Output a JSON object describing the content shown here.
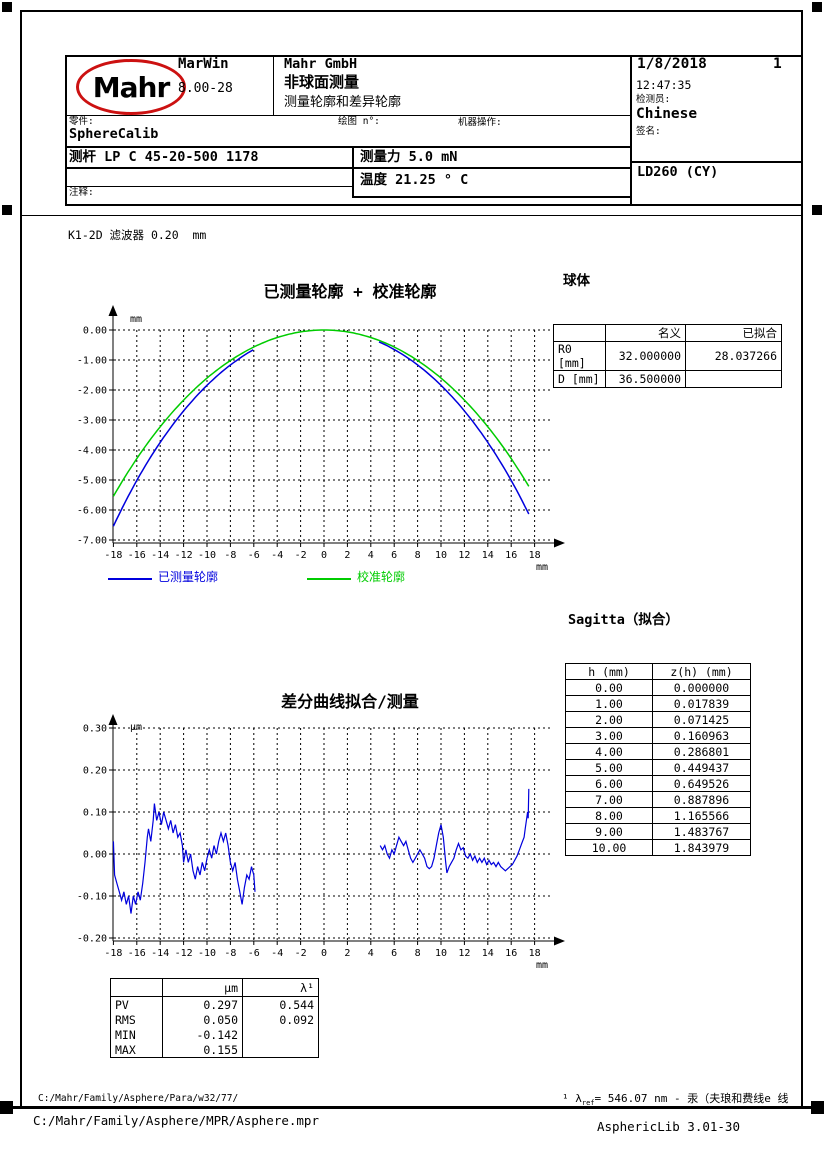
{
  "header": {
    "logo": "Mahr",
    "app": {
      "name": "MarWin",
      "version": "8.00-28"
    },
    "company": "Mahr GmbH",
    "title": "非球面测量",
    "subtitle": "测量轮廓和差异轮廓",
    "date": "1/8/2018",
    "page": "1",
    "time": "12:47:35",
    "labels": {
      "inspector": "检测员:",
      "signature": "签名:",
      "part": "零件:",
      "drawing": "绘图 n°:",
      "machine": "机器操作:",
      "comment": "注释:"
    },
    "inspector": "Chinese",
    "part": "SphereCalib",
    "probe": "测杆 LP C 45-20-500 1178",
    "force": "测量力 5.0 mN",
    "temperature": "温度 21.25 ° C",
    "instrument": "LD260 (CY)"
  },
  "filter_line": "K1-2D 滤波器 0.20  mm",
  "sphere_section": {
    "title": "球体",
    "col_nominal": "名义",
    "col_fitted": "已拟合",
    "rows": [
      {
        "label": "R0 [mm]",
        "nominal": "32.000000",
        "fitted": "28.037266"
      },
      {
        "label": "D [mm]",
        "nominal": "36.500000",
        "fitted": ""
      }
    ]
  },
  "sagitta_section": {
    "title": "Sagitta（拟合）",
    "headers": [
      "h (mm)",
      "z(h) (mm)"
    ],
    "rows": [
      [
        "0.00",
        "0.000000"
      ],
      [
        "1.00",
        "0.017839"
      ],
      [
        "2.00",
        "0.071425"
      ],
      [
        "3.00",
        "0.160963"
      ],
      [
        "4.00",
        "0.286801"
      ],
      [
        "5.00",
        "0.449437"
      ],
      [
        "6.00",
        "0.649526"
      ],
      [
        "7.00",
        "0.887896"
      ],
      [
        "8.00",
        "1.165566"
      ],
      [
        "9.00",
        "1.483767"
      ],
      [
        "10.00",
        "1.843979"
      ]
    ]
  },
  "stats_table": {
    "col_um": "μm",
    "col_lambda": "λ¹",
    "rows": [
      {
        "label": "PV",
        "um": "0.297",
        "lambda": "0.544"
      },
      {
        "label": "RMS",
        "um": "0.050",
        "lambda": "0.092"
      },
      {
        "label": "MIN",
        "um": "-0.142",
        "lambda": ""
      },
      {
        "label": "MAX",
        "um": "0.155",
        "lambda": ""
      }
    ]
  },
  "legend": {
    "measured": "已测量轮廓",
    "calibrated": "校准轮廓"
  },
  "colors": {
    "measured": "#0000dd",
    "calibrated": "#00cc00",
    "logo_red": "#cc1111"
  },
  "chart_data": [
    {
      "type": "line",
      "title": "已测量轮廓 + 校准轮廓",
      "x_unit": "mm",
      "y_unit": "mm",
      "xlim": [
        -18,
        18
      ],
      "ylim": [
        -7,
        0
      ],
      "grid": true,
      "legend_position": "below",
      "x_ticks": [
        -18,
        -16,
        -14,
        -12,
        -10,
        -8,
        -6,
        -4,
        -2,
        0,
        2,
        4,
        6,
        8,
        10,
        12,
        14,
        16,
        18
      ],
      "y_ticks": [
        0,
        -1,
        -2,
        -3,
        -4,
        -5,
        -6,
        -7
      ],
      "y_tick_labels": [
        "0.00",
        "-1.00",
        "-2.00",
        "-3.00",
        "-4.00",
        "-5.00",
        "-6.00",
        "-7.00"
      ],
      "series": [
        {
          "name": "校准轮廓",
          "color": "#00cc00",
          "model": "sphere",
          "R": 32.0,
          "segments": [
            [
              -18,
              17.5
            ]
          ]
        },
        {
          "name": "已测量轮廓",
          "color": "#0000dd",
          "model": "sphere",
          "R": 28.037266,
          "segments": [
            [
              -18,
              -6.05
            ],
            [
              4.7,
              17.5
            ]
          ]
        }
      ]
    },
    {
      "type": "line",
      "title": "差分曲线拟合/测量",
      "x_unit": "mm",
      "y_unit": "μm",
      "xlim": [
        -18,
        18
      ],
      "ylim": [
        -0.2,
        0.3
      ],
      "grid": true,
      "x_ticks": [
        -18,
        -16,
        -14,
        -12,
        -10,
        -8,
        -6,
        -4,
        -2,
        0,
        2,
        4,
        6,
        8,
        10,
        12,
        14,
        16,
        18
      ],
      "y_ticks": [
        0.3,
        0.2,
        0.1,
        0,
        -0.1,
        -0.2
      ],
      "y_tick_labels": [
        "0.30",
        "0.20",
        "0.10",
        "0.00",
        "-0.10",
        "-0.20"
      ],
      "series": [
        {
          "name": "差分曲线",
          "color": "#0000dd",
          "segments_xy": [
            [
              [
                -18,
                0.03
              ],
              [
                -17.9,
                -0.05
              ],
              [
                -17.7,
                -0.07
              ],
              [
                -17.5,
                -0.09
              ],
              [
                -17.3,
                -0.11
              ],
              [
                -17.1,
                -0.09
              ],
              [
                -16.9,
                -0.12
              ],
              [
                -16.7,
                -0.1
              ],
              [
                -16.5,
                -0.142
              ],
              [
                -16.3,
                -0.1
              ],
              [
                -16.1,
                -0.12
              ],
              [
                -15.9,
                -0.09
              ],
              [
                -15.7,
                -0.11
              ],
              [
                -15.5,
                -0.07
              ],
              [
                -15.3,
                -0.02
              ],
              [
                -15.1,
                0.04
              ],
              [
                -15.0,
                0.06
              ],
              [
                -14.8,
                0.03
              ],
              [
                -14.6,
                0.08
              ],
              [
                -14.5,
                0.12
              ],
              [
                -14.3,
                0.08
              ],
              [
                -14.1,
                0.1
              ],
              [
                -13.9,
                0.07
              ],
              [
                -13.7,
                0.1
              ],
              [
                -13.5,
                0.08
              ],
              [
                -13.3,
                0.06
              ],
              [
                -13.1,
                0.08
              ],
              [
                -12.9,
                0.05
              ],
              [
                -12.7,
                0.07
              ],
              [
                -12.5,
                0.04
              ],
              [
                -12.3,
                0.05
              ],
              [
                -12.1,
                0.02
              ],
              [
                -12.0,
                -0.02
              ],
              [
                -11.8,
                0.01
              ],
              [
                -11.6,
                -0.02
              ],
              [
                -11.4,
                0.0
              ],
              [
                -11.2,
                -0.04
              ],
              [
                -11.0,
                -0.06
              ],
              [
                -10.8,
                -0.03
              ],
              [
                -10.6,
                -0.05
              ],
              [
                -10.4,
                -0.02
              ],
              [
                -10.2,
                -0.04
              ],
              [
                -10.0,
                -0.01
              ],
              [
                -9.8,
                0.01
              ],
              [
                -9.6,
                -0.01
              ],
              [
                -9.4,
                0.02
              ],
              [
                -9.2,
                0.0
              ],
              [
                -9.0,
                0.03
              ],
              [
                -8.8,
                0.05
              ],
              [
                -8.6,
                0.03
              ],
              [
                -8.4,
                0.05
              ],
              [
                -8.2,
                0.02
              ],
              [
                -8.0,
                -0.02
              ],
              [
                -7.8,
                -0.04
              ],
              [
                -7.6,
                -0.02
              ],
              [
                -7.4,
                -0.06
              ],
              [
                -7.2,
                -0.09
              ],
              [
                -7.0,
                -0.12
              ],
              [
                -6.8,
                -0.08
              ],
              [
                -6.6,
                -0.05
              ],
              [
                -6.4,
                -0.06
              ],
              [
                -6.2,
                -0.03
              ],
              [
                -6.0,
                -0.05
              ],
              [
                -5.9,
                -0.09
              ]
            ],
            [
              [
                4.8,
                0.02
              ],
              [
                5.0,
                0.01
              ],
              [
                5.2,
                0.02
              ],
              [
                5.4,
                0.0
              ],
              [
                5.6,
                -0.01
              ],
              [
                5.8,
                0.01
              ],
              [
                6.0,
                0.0
              ],
              [
                6.2,
                0.02
              ],
              [
                6.4,
                0.04
              ],
              [
                6.6,
                0.03
              ],
              [
                6.8,
                0.02
              ],
              [
                7.0,
                0.03
              ],
              [
                7.2,
                0.01
              ],
              [
                7.4,
                -0.01
              ],
              [
                7.6,
                -0.02
              ],
              [
                7.8,
                -0.01
              ],
              [
                8.0,
                0.0
              ],
              [
                8.2,
                0.01
              ],
              [
                8.4,
                0.0
              ],
              [
                8.6,
                -0.01
              ],
              [
                8.8,
                -0.03
              ],
              [
                9.0,
                -0.035
              ],
              [
                9.2,
                -0.03
              ],
              [
                9.4,
                -0.01
              ],
              [
                9.6,
                0.02
              ],
              [
                9.8,
                0.05
              ],
              [
                10.0,
                0.07
              ],
              [
                10.2,
                0.04
              ],
              [
                10.4,
                -0.02
              ],
              [
                10.5,
                -0.045
              ],
              [
                10.7,
                -0.03
              ],
              [
                10.9,
                -0.02
              ],
              [
                11.1,
                -0.01
              ],
              [
                11.3,
                0.01
              ],
              [
                11.5,
                0.025
              ],
              [
                11.7,
                0.01
              ],
              [
                11.9,
                0.015
              ],
              [
                12.1,
                -0.005
              ],
              [
                12.3,
                -0.01
              ],
              [
                12.5,
                0.0
              ],
              [
                12.7,
                -0.015
              ],
              [
                12.9,
                -0.005
              ],
              [
                13.1,
                -0.02
              ],
              [
                13.3,
                -0.01
              ],
              [
                13.5,
                -0.02
              ],
              [
                13.7,
                -0.01
              ],
              [
                13.9,
                -0.025
              ],
              [
                14.1,
                -0.015
              ],
              [
                14.3,
                -0.025
              ],
              [
                14.5,
                -0.02
              ],
              [
                14.7,
                -0.03
              ],
              [
                14.9,
                -0.02
              ],
              [
                15.1,
                -0.03
              ],
              [
                15.3,
                -0.035
              ],
              [
                15.5,
                -0.04
              ],
              [
                15.7,
                -0.035
              ],
              [
                15.9,
                -0.03
              ],
              [
                16.1,
                -0.025
              ],
              [
                16.3,
                -0.015
              ],
              [
                16.5,
                -0.005
              ],
              [
                16.7,
                0.01
              ],
              [
                16.9,
                0.025
              ],
              [
                17.1,
                0.04
              ],
              [
                17.2,
                0.06
              ],
              [
                17.3,
                0.08
              ],
              [
                17.4,
                0.1
              ],
              [
                17.45,
                0.085
              ],
              [
                17.5,
                0.155
              ]
            ]
          ]
        }
      ]
    }
  ],
  "footer": {
    "param_path": "C:/Mahr/Family/Asphere/Para/w32/77/",
    "program_path": "C:/Mahr/Family/Asphere/MPR/Asphere.mpr",
    "note_prefix": "¹ λ",
    "note_sub": "ref",
    "note_rest": "= 546.07 nm - 汞（夫琅和费线e 线",
    "library": "AsphericLib 3.01-30"
  }
}
